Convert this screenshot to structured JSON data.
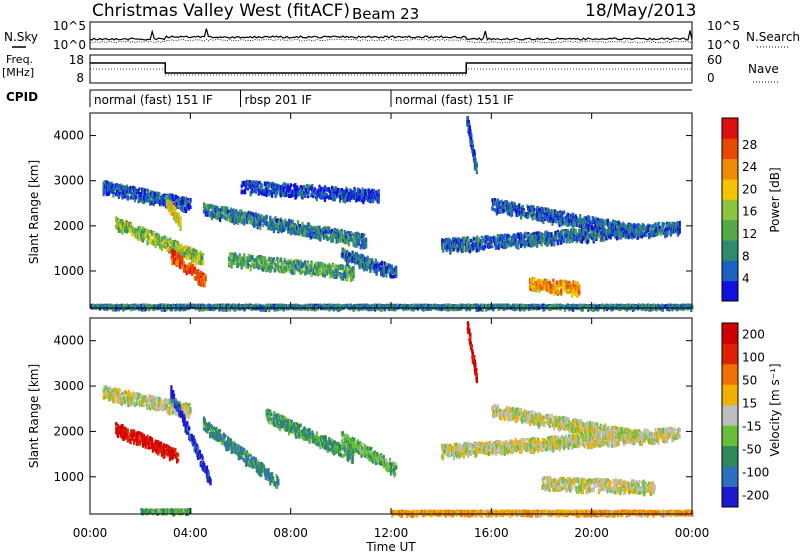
{
  "header": {
    "station": "Christmas Valley West (fitACF)",
    "beam": "Beam 23",
    "date": "18/May/2013"
  },
  "noise_panel": {
    "left_label": "N.Sky",
    "right_label": "N.Search",
    "left_ticks": [
      "10^5",
      "10^0"
    ],
    "right_ticks": [
      "10^5",
      "10^0"
    ]
  },
  "freq_panel": {
    "left_label_line1": "Freq.",
    "left_label_line2": "[MHz]",
    "right_label": "Nave",
    "left_ticks": [
      "18",
      "8"
    ],
    "right_ticks": [
      "60",
      "0"
    ]
  },
  "cpid_panel": {
    "label": "CPID",
    "modes": [
      {
        "name": "normal (fast) 151 IF",
        "start_hour": 0,
        "end_hour": 6
      },
      {
        "name": "rbsp 201 IF",
        "start_hour": 6,
        "end_hour": 12
      },
      {
        "name": "normal (fast) 151 IF",
        "start_hour": 12,
        "end_hour": 24
      }
    ]
  },
  "chart_data": [
    {
      "type": "heatmap",
      "title": "",
      "xlabel": "",
      "ylabel": "Slant Range [km]",
      "xlim": [
        0,
        24
      ],
      "ylim": [
        180,
        4500
      ],
      "yticks": [
        "1000",
        "2000",
        "3000",
        "4000"
      ],
      "colorbar": {
        "label": "Power [dB]",
        "ticks": [
          "4",
          "8",
          "12",
          "16",
          "20",
          "24",
          "28"
        ],
        "colors": [
          "#1010e0",
          "#1e5fc2",
          "#2e8b6e",
          "#56a84a",
          "#8cc63f",
          "#f5c400",
          "#f08a00",
          "#e84800",
          "#e01010"
        ]
      },
      "bands": [
        {
          "start": 0.5,
          "end": 4.0,
          "r0": 2900,
          "r1": 2500,
          "level": 0.15
        },
        {
          "start": 1.0,
          "end": 4.5,
          "r0": 2100,
          "r1": 1300,
          "level": 0.45
        },
        {
          "start": 3.2,
          "end": 4.6,
          "r0": 1400,
          "r1": 800,
          "level": 0.85
        },
        {
          "start": 3.0,
          "end": 3.6,
          "r0": 2600,
          "r1": 2100,
          "level": 0.6
        },
        {
          "start": 4.5,
          "end": 11.0,
          "r0": 2400,
          "r1": 1700,
          "level": 0.25
        },
        {
          "start": 5.5,
          "end": 10.5,
          "r0": 1300,
          "r1": 1000,
          "level": 0.35
        },
        {
          "start": 6.0,
          "end": 11.5,
          "r0": 2900,
          "r1": 2700,
          "level": 0.12
        },
        {
          "start": 10.0,
          "end": 12.2,
          "r0": 1400,
          "r1": 1000,
          "level": 0.2
        },
        {
          "start": 14.0,
          "end": 23.5,
          "r0": 1600,
          "r1": 2000,
          "level": 0.2
        },
        {
          "start": 16.0,
          "end": 22.0,
          "r0": 2500,
          "r1": 1900,
          "level": 0.18
        },
        {
          "start": 17.5,
          "end": 19.5,
          "r0": 750,
          "r1": 650,
          "level": 0.7
        },
        {
          "start": 15.0,
          "end": 15.4,
          "r0": 4400,
          "r1": 3200,
          "level": 0.15
        },
        {
          "start": 0.0,
          "end": 24.0,
          "r0": 250,
          "r1": 250,
          "level": 0.25
        }
      ]
    },
    {
      "type": "heatmap",
      "title": "",
      "xlabel": "Time UT",
      "ylabel": "Slant Range [km]",
      "xlim": [
        0,
        24
      ],
      "ylim": [
        180,
        4500
      ],
      "yticks": [
        "1000",
        "2000",
        "3000",
        "4000"
      ],
      "xticks": [
        "00:00",
        "04:00",
        "08:00",
        "12:00",
        "16:00",
        "20:00",
        "00:00"
      ],
      "colorbar": {
        "label": "Velocity [m s⁻¹]",
        "ticks": [
          "200",
          "100",
          "50",
          "15",
          "-15",
          "-50",
          "-100",
          "-200"
        ],
        "colors": [
          "#1a1ad0",
          "#2f6fc0",
          "#2e8b57",
          "#6abf3a",
          "#bdbdbd",
          "#f0b000",
          "#f07000",
          "#e02000",
          "#d00000"
        ]
      },
      "bands": [
        {
          "start": 0.5,
          "end": 4.0,
          "r0": 2900,
          "r1": 2500,
          "level": 0.5
        },
        {
          "start": 1.0,
          "end": 3.5,
          "r0": 2100,
          "r1": 1500,
          "level": 0.9
        },
        {
          "start": 3.2,
          "end": 4.8,
          "r0": 2900,
          "r1": 900,
          "level": 0.05
        },
        {
          "start": 4.5,
          "end": 7.5,
          "r0": 2200,
          "r1": 900,
          "level": 0.25
        },
        {
          "start": 7.0,
          "end": 10.5,
          "r0": 2400,
          "r1": 1500,
          "level": 0.3
        },
        {
          "start": 10.0,
          "end": 12.2,
          "r0": 1900,
          "r1": 1200,
          "level": 0.35
        },
        {
          "start": 14.0,
          "end": 23.5,
          "r0": 1600,
          "r1": 2000,
          "level": 0.5
        },
        {
          "start": 16.0,
          "end": 22.0,
          "r0": 2500,
          "r1": 1900,
          "level": 0.5
        },
        {
          "start": 18.0,
          "end": 22.5,
          "r0": 900,
          "r1": 800,
          "level": 0.5
        },
        {
          "start": 15.0,
          "end": 15.4,
          "r0": 4400,
          "r1": 3200,
          "level": 0.95
        },
        {
          "start": 12.0,
          "end": 24.0,
          "r0": 250,
          "r1": 250,
          "level": 0.65
        },
        {
          "start": 2.0,
          "end": 4.0,
          "r0": 280,
          "r1": 280,
          "level": 0.35
        }
      ]
    }
  ]
}
